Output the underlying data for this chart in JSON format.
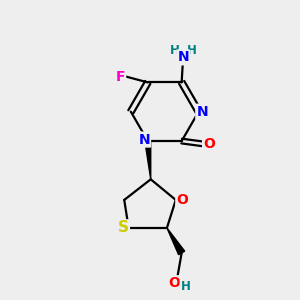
{
  "bg_color": "#eeeeee",
  "atom_colors": {
    "N": "#0000ff",
    "O": "#ff0000",
    "F": "#ff00cc",
    "S": "#cccc00",
    "C": "#000000",
    "H": "#008080"
  },
  "bond_color": "#000000"
}
